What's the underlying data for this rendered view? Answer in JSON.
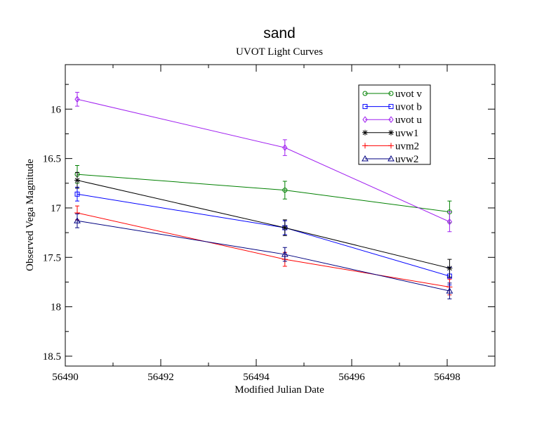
{
  "chart_data": {
    "type": "line",
    "title": "sand",
    "subtitle": "UVOT Light Curves",
    "xlabel": "Modified Julian Date",
    "ylabel": "Observed Vega Magnitude",
    "xlim": [
      56490,
      56499
    ],
    "ylim": [
      18.6,
      15.55
    ],
    "y_inverted": true,
    "x_ticks": [
      56490,
      56492,
      56494,
      56496,
      56498
    ],
    "x_tick_labels": [
      "56490",
      "56492",
      "56494",
      "56496",
      "56498"
    ],
    "y_ticks": [
      16,
      16.5,
      17,
      17.5,
      18,
      18.5
    ],
    "y_tick_labels": [
      "16",
      "16.5",
      "17",
      "17.5",
      "18",
      "18.5"
    ],
    "grid": false,
    "legend_position": "top-right",
    "series": [
      {
        "name": "uvot v",
        "color": "#008000",
        "marker": "circle",
        "x": [
          56490.25,
          56494.6,
          56498.05
        ],
        "y": [
          16.66,
          16.82,
          17.04
        ],
        "err": [
          0.09,
          0.09,
          0.11
        ]
      },
      {
        "name": "uvot b",
        "color": "#0000ff",
        "marker": "square",
        "x": [
          56490.25,
          56494.6,
          56498.05
        ],
        "y": [
          16.86,
          17.2,
          17.69
        ],
        "err": [
          0.07,
          0.07,
          0.09
        ]
      },
      {
        "name": "uvot u",
        "color": "#a020f0",
        "marker": "diamond",
        "x": [
          56490.25,
          56494.6,
          56498.05
        ],
        "y": [
          15.9,
          16.39,
          17.14
        ],
        "err": [
          0.07,
          0.08,
          0.1
        ]
      },
      {
        "name": "uvw1",
        "color": "#000000",
        "marker": "asterisk",
        "x": [
          56490.25,
          56494.6,
          56498.05
        ],
        "y": [
          16.72,
          17.2,
          17.61
        ],
        "err": [
          0.08,
          0.08,
          0.09
        ]
      },
      {
        "name": "uvm2",
        "color": "#ff0000",
        "marker": "plus",
        "x": [
          56490.25,
          56494.6,
          56498.05
        ],
        "y": [
          17.05,
          17.52,
          17.8
        ],
        "err": [
          0.07,
          0.07,
          0.08
        ]
      },
      {
        "name": "uvw2",
        "color": "#000080",
        "marker": "triangle",
        "x": [
          56490.25,
          56494.6,
          56498.05
        ],
        "y": [
          17.13,
          17.47,
          17.84
        ],
        "err": [
          0.07,
          0.07,
          0.08
        ]
      }
    ]
  }
}
